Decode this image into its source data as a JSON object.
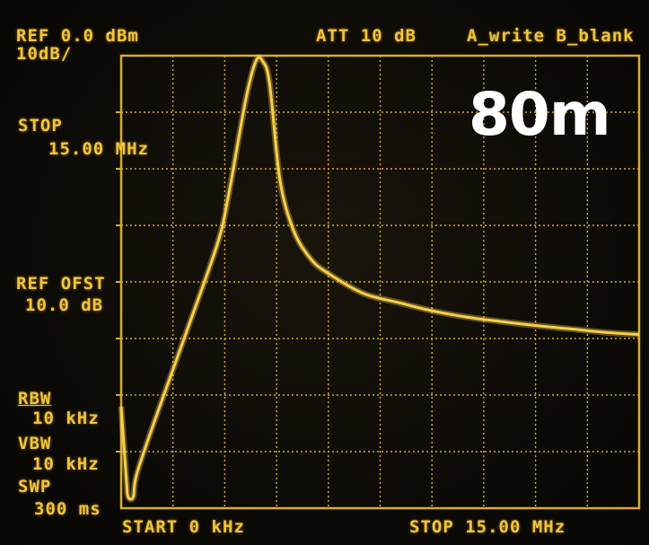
{
  "header": {
    "ref_level": "REF 0.0 dBm",
    "scale": "10dB/",
    "attenuation": "ATT 10 dB",
    "trace_mode": "A_write B_blank"
  },
  "left_panel": {
    "stop_label": "STOP",
    "stop_value": "15.00 MHz",
    "ref_offset_label": "REF OFST",
    "ref_offset_value": "10.0 dB",
    "rbw_label": "RBW",
    "rbw_value": "10 kHz",
    "vbw_label": "VBW",
    "vbw_value": "10 kHz",
    "sweep_label": "SWP",
    "sweep_value": "300 ms"
  },
  "footer": {
    "start": "START 0 kHz",
    "stop": "STOP 15.00 MHz"
  },
  "overlay": {
    "band_label": "80m"
  },
  "colors": {
    "trace": "#f6cf4a",
    "grid": "#d8ad2c",
    "text": "#f2c43a",
    "overlay_text": "#ffffff"
  },
  "chart_data": {
    "type": "line",
    "x_unit": "MHz",
    "y_unit": "dBm",
    "xlim": [
      0,
      15
    ],
    "ylim": [
      -80,
      0
    ],
    "grid": true,
    "x": [
      0,
      0.15,
      0.2,
      0.35,
      0.45,
      1.0,
      2.0,
      2.8,
      3.1,
      3.6,
      3.9,
      4.1,
      4.3,
      4.6,
      5.0,
      5.5,
      6.0,
      7.0,
      8.0,
      9.0,
      10.0,
      11.0,
      12.0,
      13.0,
      14.0,
      15.0
    ],
    "series": [
      {
        "values": [
          -62,
          -75,
          -78,
          -78,
          -74,
          -64,
          -47,
          -33,
          -25,
          -8,
          -1,
          -1,
          -5,
          -22,
          -31,
          -36,
          -38.5,
          -42,
          -43.6,
          -45.1,
          -46.2,
          -47,
          -47.7,
          -48.3,
          -48.9,
          -49.3
        ]
      }
    ]
  }
}
